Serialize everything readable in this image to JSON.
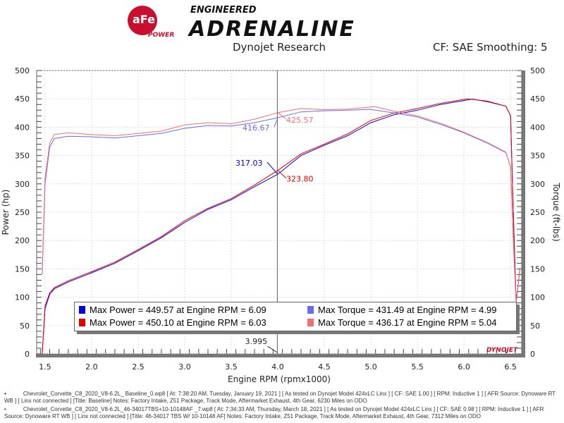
{
  "header": {
    "logo_text": "aFe POWER ENGINEERED ADRENALINE",
    "subtitle_left": "Dynojet Research",
    "subtitle_right": "CF: SAE Smoothing: 5"
  },
  "colors": {
    "power_baseline": "#0000e0",
    "power_mod": "#e00000",
    "torque_baseline": "#6b6bf0",
    "torque_mod": "#f07070"
  },
  "chart_data": {
    "type": "line",
    "xlabel": "Engine RPM (rpmx1000)",
    "ylabel": "Power (hp)",
    "y2label": "Torque (ft-lbs)",
    "xlim": [
      1.41,
      6.62
    ],
    "ylim": [
      0,
      500
    ],
    "y2lim": [
      0,
      500
    ],
    "xticks": [
      "1.5",
      "2.0",
      "2.5",
      "3.0",
      "3.5",
      "4.0",
      "4.5",
      "5.0",
      "5.5",
      "6.0",
      "6.5"
    ],
    "yticks": [
      "0",
      "50",
      "100",
      "150",
      "200",
      "250",
      "300",
      "350",
      "400",
      "450",
      "500"
    ],
    "grid": true,
    "cursor": {
      "x": 3.995,
      "label": "3.995"
    },
    "annotations": [
      {
        "text": "416.67",
        "x": 4.0,
        "y": 416.67,
        "series": "torque_baseline"
      },
      {
        "text": "425.57",
        "x": 4.0,
        "y": 425.57,
        "series": "torque_mod"
      },
      {
        "text": "317.03",
        "x": 4.0,
        "y": 317.03,
        "series": "power_baseline"
      },
      {
        "text": "323.80",
        "x": 4.0,
        "y": 323.8,
        "series": "power_mod"
      }
    ],
    "series": [
      {
        "key": "power_baseline",
        "x": [
          1.47,
          1.5,
          1.55,
          1.6,
          1.75,
          2.0,
          2.25,
          2.5,
          2.75,
          3.0,
          3.25,
          3.5,
          3.75,
          4.0,
          4.25,
          4.5,
          4.75,
          5.0,
          5.25,
          5.5,
          5.75,
          6.0,
          6.09,
          6.25,
          6.45,
          6.5,
          6.53,
          6.56,
          6.6
        ],
        "y": [
          0,
          80,
          105,
          115,
          127,
          143,
          160,
          182,
          205,
          232,
          255,
          272,
          295,
          317,
          350,
          368,
          385,
          408,
          422,
          430,
          440,
          447,
          449.57,
          445,
          437,
          420,
          250,
          90,
          150
        ]
      },
      {
        "key": "power_mod",
        "x": [
          1.47,
          1.5,
          1.55,
          1.6,
          1.75,
          2.0,
          2.25,
          2.5,
          2.75,
          3.0,
          3.25,
          3.5,
          3.75,
          4.0,
          4.25,
          4.5,
          4.75,
          5.0,
          5.25,
          5.5,
          5.75,
          6.0,
          6.03,
          6.25,
          6.45,
          6.5,
          6.53,
          6.56,
          6.6
        ],
        "y": [
          0,
          85,
          108,
          117,
          129,
          145,
          162,
          184,
          207,
          235,
          257,
          274,
          298,
          323.8,
          353,
          370,
          388,
          412,
          425,
          433,
          442,
          449,
          450.1,
          446,
          437,
          420,
          250,
          90,
          150
        ]
      },
      {
        "key": "torque_baseline",
        "x": [
          1.47,
          1.5,
          1.55,
          1.6,
          1.75,
          2.0,
          2.25,
          2.5,
          2.75,
          3.0,
          3.25,
          3.5,
          3.75,
          4.0,
          4.25,
          4.5,
          4.75,
          4.99,
          5.25,
          5.5,
          5.75,
          6.0,
          6.25,
          6.45,
          6.5,
          6.53,
          6.56,
          6.6
        ],
        "y": [
          140,
          300,
          365,
          380,
          384,
          383,
          381,
          385,
          389,
          398,
          403,
          402,
          408,
          416.67,
          427,
          429,
          430,
          431.49,
          425,
          418,
          405,
          390,
          372,
          355,
          330,
          200,
          90,
          150
        ]
      },
      {
        "key": "torque_mod",
        "x": [
          1.47,
          1.5,
          1.55,
          1.6,
          1.75,
          2.0,
          2.25,
          2.5,
          2.75,
          3.0,
          3.25,
          3.5,
          3.75,
          4.0,
          4.25,
          4.5,
          4.75,
          5.04,
          5.25,
          5.5,
          5.75,
          6.0,
          6.25,
          6.45,
          6.5,
          6.53,
          6.56,
          6.6
        ],
        "y": [
          150,
          310,
          372,
          387,
          390,
          387,
          385,
          389,
          393,
          404,
          408,
          406,
          414,
          425.57,
          433,
          431,
          432,
          436.17,
          428,
          420,
          407,
          391,
          373,
          356,
          330,
          200,
          90,
          150
        ]
      }
    ],
    "legend": {
      "placement": "bottom",
      "entries": [
        {
          "key": "power_baseline",
          "text": "Max Power = 449.57 at Engine RPM = 6.09"
        },
        {
          "key": "torque_baseline",
          "text": "Max Torque = 431.49 at Engine RPM = 4.99"
        },
        {
          "key": "power_mod",
          "text": "Max Power = 450.10 at Engine RPM = 6.03"
        },
        {
          "key": "torque_mod",
          "text": "Max Torque = 436.17 at Engine RPM = 5.04"
        }
      ]
    },
    "watermark": "DYNOJET"
  },
  "footer": {
    "run1": "Chevrolet_Corvette_C8_2020_V8-6.2L_ Baseline_0.wp8 [ At: 7:38:20 AM, Tuesday, January 19, 2021 ] [ As tested on Dynojet Model 424xLC Linx ] [ CF: SAE 1.00 ] [ RPM: Inductive 1 ] [ AFR Source: Dynoware RT WB ] [ Linx not connected ] [Title: Baseline]  Notes: Factory Intake, Z51 Package, Track Mode, Aftermarket Exhaust, 4th Gear, 6230 Miles on ODO",
    "run2": "Chevrolet_Corvette_C8_2020_V8-6.2L_46-34017TBS+10-10148AF _7.wp8 [ At: 7:34:33 AM, Thursday, March 18, 2021 ] [ As tested on Dynojet Model 424xLC Linx ] [ CF: SAE 0.98 ] [ RPM: Inductive 1 ] [ AFR Source: Dynoware RT WB ] [ Linx not connected ] [Title: 46-34017 TBS W/ 10-10148 AF]  Notes: Factory Intake, Z51 Package, Track Mode, Aftermarket Exhaust, 4th Gear, 7312 Miles on ODO"
  }
}
